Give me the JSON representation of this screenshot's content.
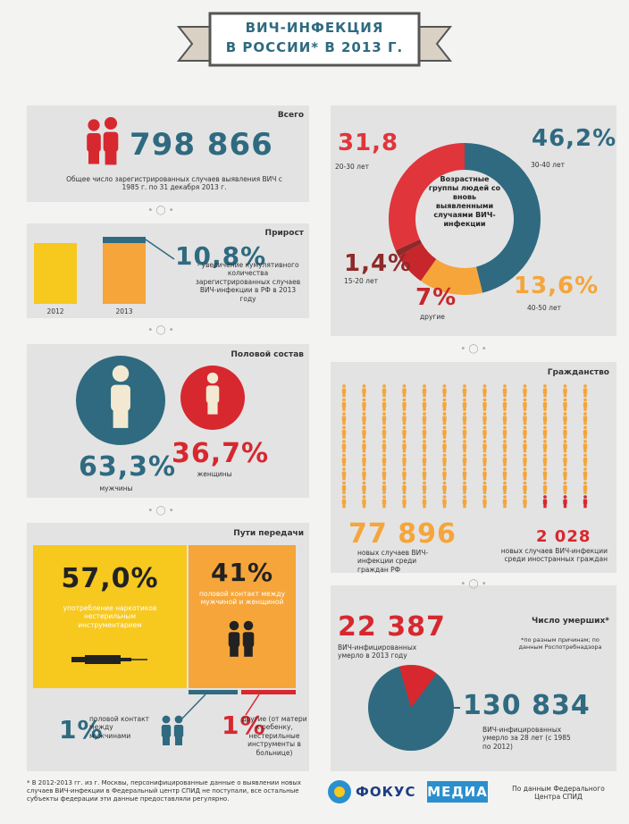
{
  "header": {
    "title_line1": "ВИЧ-ИНФЕКЦИЯ",
    "title_line2": "В РОССИИ* В 2013 Г."
  },
  "total": {
    "heading": "Всего",
    "value": "798 866",
    "caption": "Общее число зарегистрированных случаев выявления ВИЧ с 1985 г. по 31 декабря 2013 г."
  },
  "growth": {
    "heading": "Прирост",
    "value": "10,8%",
    "caption": "- увеличение кумулятивного количества зарегистрированных случаев ВИЧ-инфекции в РФ в 2013 году",
    "years": [
      "2012",
      "2013"
    ]
  },
  "sex": {
    "heading": "Половой состав",
    "men": {
      "value": "63,3%",
      "label": "мужчины"
    },
    "women": {
      "value": "36,7%",
      "label": "женщины"
    }
  },
  "transmission": {
    "heading": "Пути передачи",
    "items": [
      {
        "value": "57,0%",
        "label": "употребление наркотиков нестерильным инструментарием"
      },
      {
        "value": "41%",
        "label": "половой контакт между мужчиной и женщиной"
      },
      {
        "value": "1%",
        "label": "половой контакт между мужчинами"
      },
      {
        "value": "1%",
        "label": "другие (от матери к ребенку, нестерильные инструменты в больнице)"
      }
    ]
  },
  "age": {
    "title": "Возрастные группы людей со вновь выявленными случаями ВИЧ-инфекции",
    "segments": [
      {
        "label": "46,2%",
        "value": 46.2,
        "caption": "30-40 лет",
        "color": "#2f6a80"
      },
      {
        "label": "13,6%",
        "value": 13.6,
        "caption": "40-50 лет",
        "color": "#f5a53a"
      },
      {
        "label": "7%",
        "value": 7,
        "caption": "другие",
        "color": "#c7262c"
      },
      {
        "label": "1,4%",
        "value": 1.4,
        "caption": "15-20 лет",
        "color": "#8e2a2a"
      },
      {
        "label": "31,8",
        "value": 31.8,
        "caption": "20-30 лет",
        "color": "#e0353b"
      }
    ]
  },
  "citizenship": {
    "heading": "Гражданство",
    "russian": {
      "value": "77 896",
      "label": "новых случаев ВИЧ-инфекции среди граждан РФ"
    },
    "foreign": {
      "value": "2 028",
      "label": "новых случаев ВИЧ-инфекции среди иностранных граждан"
    }
  },
  "deaths": {
    "heading": "Число умерших*",
    "note": "*по разным причинам; по данным Роспотребнадзора",
    "year": {
      "value": 22387,
      "label": "22 387",
      "caption": "ВИЧ-инфицированных умерло в 2013 году",
      "color": "#d7282f"
    },
    "total": {
      "value": 130834,
      "label": "130 834",
      "caption": "ВИЧ-инфицированных умерло за 28 лет (с 1985 по 2012)",
      "color": "#2f6a80"
    }
  },
  "footer": {
    "footnote": "* В 2012-2013 гг. из г. Москвы, персонифицированные данные о выявлении новых случаев ВИЧ-инфекции в Федеральный центр СПИД не поступали, все остальные субъекты федерации эти данные предоставляли регулярно.",
    "logo1": "ФОКУС",
    "logo2": "МЕДИА",
    "source": "По данным Федерального Центра СПИД"
  }
}
